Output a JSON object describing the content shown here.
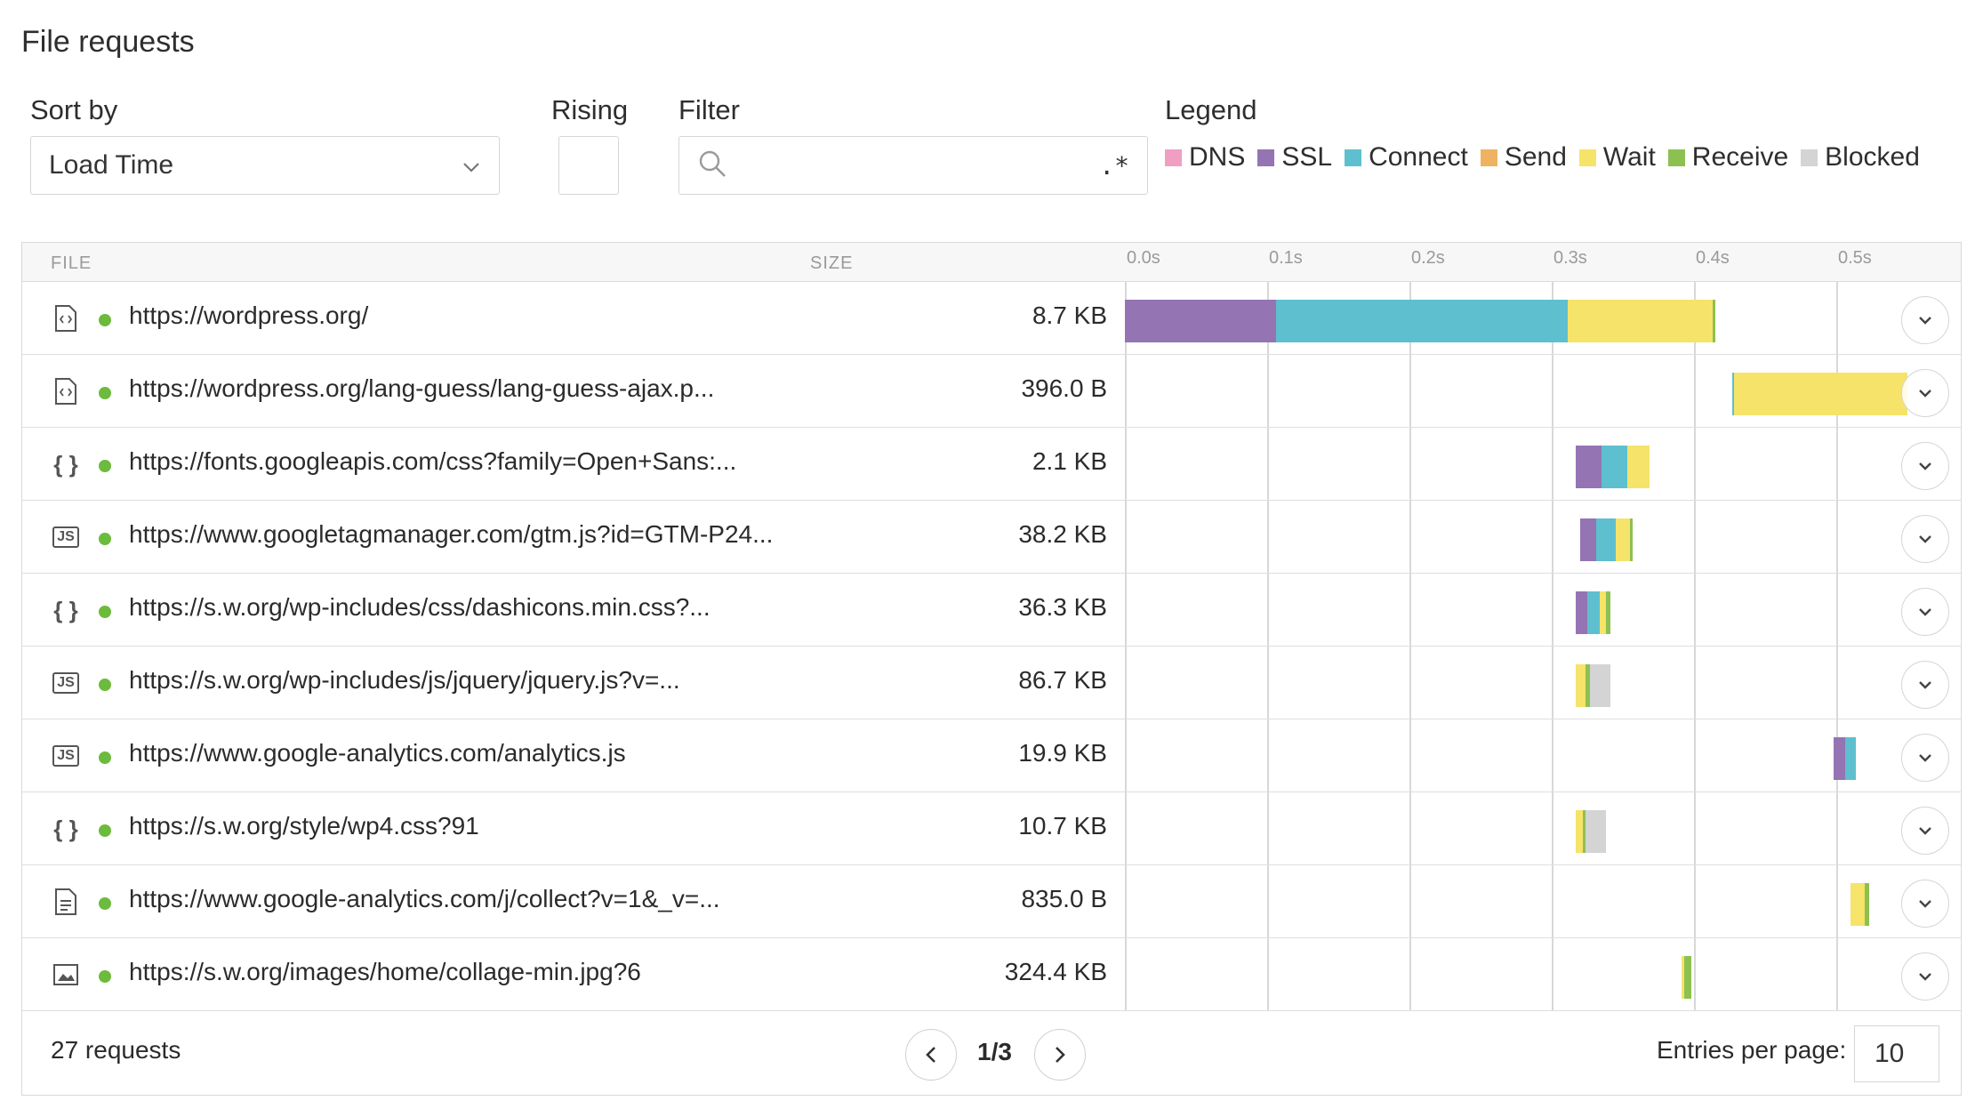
{
  "title": "File requests",
  "sort": {
    "label": "Sort by",
    "value": "Load Time",
    "icon": "chevron-down-icon"
  },
  "rising": {
    "label": "Rising",
    "checked": false
  },
  "filter": {
    "label": "Filter",
    "value": "",
    "regex_label": ".*",
    "icon": "search-icon"
  },
  "legend": {
    "label": "Legend",
    "items": [
      {
        "name": "DNS",
        "color": "#f09ec4"
      },
      {
        "name": "SSL",
        "color": "#9474b2"
      },
      {
        "name": "Connect",
        "color": "#5ebfcf"
      },
      {
        "name": "Send",
        "color": "#efb261"
      },
      {
        "name": "Wait",
        "color": "#f6e36a"
      },
      {
        "name": "Receive",
        "color": "#8cc152"
      },
      {
        "name": "Blocked",
        "color": "#d4d4d4"
      }
    ]
  },
  "table": {
    "headers": {
      "file": "FILE",
      "size": "SIZE"
    },
    "ticks": [
      "0.0s",
      "0.1s",
      "0.2s",
      "0.3s",
      "0.4s",
      "0.5s"
    ],
    "rows": [
      {
        "icon": "html-file-icon",
        "glyph": "</>",
        "url": "https://wordpress.org/",
        "size": "8.7 KB"
      },
      {
        "icon": "html-file-icon",
        "glyph": "</>",
        "url": "https://wordpress.org/lang-guess/lang-guess-ajax.p...",
        "size": "396.0 B"
      },
      {
        "icon": "css-file-icon",
        "glyph": "{ }",
        "url": "https://fonts.googleapis.com/css?family=Open+Sans:...",
        "size": "2.1 KB"
      },
      {
        "icon": "js-file-icon",
        "glyph": "JS",
        "url": "https://www.googletagmanager.com/gtm.js?id=GTM-P24...",
        "size": "38.2 KB"
      },
      {
        "icon": "css-file-icon",
        "glyph": "{ }",
        "url": "https://s.w.org/wp-includes/css/dashicons.min.css?...",
        "size": "36.3 KB"
      },
      {
        "icon": "js-file-icon",
        "glyph": "JS",
        "url": "https://s.w.org/wp-includes/js/jquery/jquery.js?v=...",
        "size": "86.7 KB"
      },
      {
        "icon": "js-file-icon",
        "glyph": "JS",
        "url": "https://www.google-analytics.com/analytics.js",
        "size": "19.9 KB"
      },
      {
        "icon": "css-file-icon",
        "glyph": "{ }",
        "url": "https://s.w.org/style/wp4.css?91",
        "size": "10.7 KB"
      },
      {
        "icon": "document-file-icon",
        "glyph": "≡",
        "url": "https://www.google-analytics.com/j/collect?v=1&_v=...",
        "size": "835.0 B"
      },
      {
        "icon": "image-file-icon",
        "glyph": "▣",
        "url": "https://s.w.org/images/home/collage-min.jpg?6",
        "size": "324.4 KB"
      }
    ]
  },
  "timings": [
    [
      [
        "SSL",
        0.0,
        0.106
      ],
      [
        "Connect",
        0.106,
        0.311
      ],
      [
        "Wait",
        0.311,
        0.413
      ],
      [
        "Receive",
        0.413,
        0.415
      ]
    ],
    [
      [
        "Connect",
        0.427,
        0.428
      ],
      [
        "Wait",
        0.428,
        0.55
      ]
    ],
    [
      [
        "SSL",
        0.317,
        0.335
      ],
      [
        "Connect",
        0.335,
        0.353
      ],
      [
        "Wait",
        0.353,
        0.369
      ]
    ],
    [
      [
        "SSL",
        0.32,
        0.331
      ],
      [
        "Connect",
        0.331,
        0.345
      ],
      [
        "Wait",
        0.345,
        0.355
      ],
      [
        "Receive",
        0.355,
        0.357
      ]
    ],
    [
      [
        "SSL",
        0.317,
        0.325
      ],
      [
        "Connect",
        0.325,
        0.334
      ],
      [
        "Wait",
        0.334,
        0.338
      ],
      [
        "Receive",
        0.338,
        0.341
      ]
    ],
    [
      [
        "Wait",
        0.317,
        0.324
      ],
      [
        "Receive",
        0.324,
        0.327
      ],
      [
        "Blocked",
        0.327,
        0.341
      ]
    ],
    [
      [
        "SSL",
        0.498,
        0.506
      ],
      [
        "Connect",
        0.506,
        0.514
      ]
    ],
    [
      [
        "Wait",
        0.317,
        0.322
      ],
      [
        "Receive",
        0.322,
        0.324
      ],
      [
        "Blocked",
        0.324,
        0.338
      ]
    ],
    [
      [
        "Wait",
        0.51,
        0.52
      ],
      [
        "Receive",
        0.52,
        0.523
      ]
    ],
    [
      [
        "Wait",
        0.391,
        0.393
      ],
      [
        "Receive",
        0.393,
        0.398
      ]
    ]
  ],
  "footer": {
    "count": "27 requests",
    "page": "1/3",
    "entries_label": "Entries per page:",
    "entries_value": "10"
  }
}
